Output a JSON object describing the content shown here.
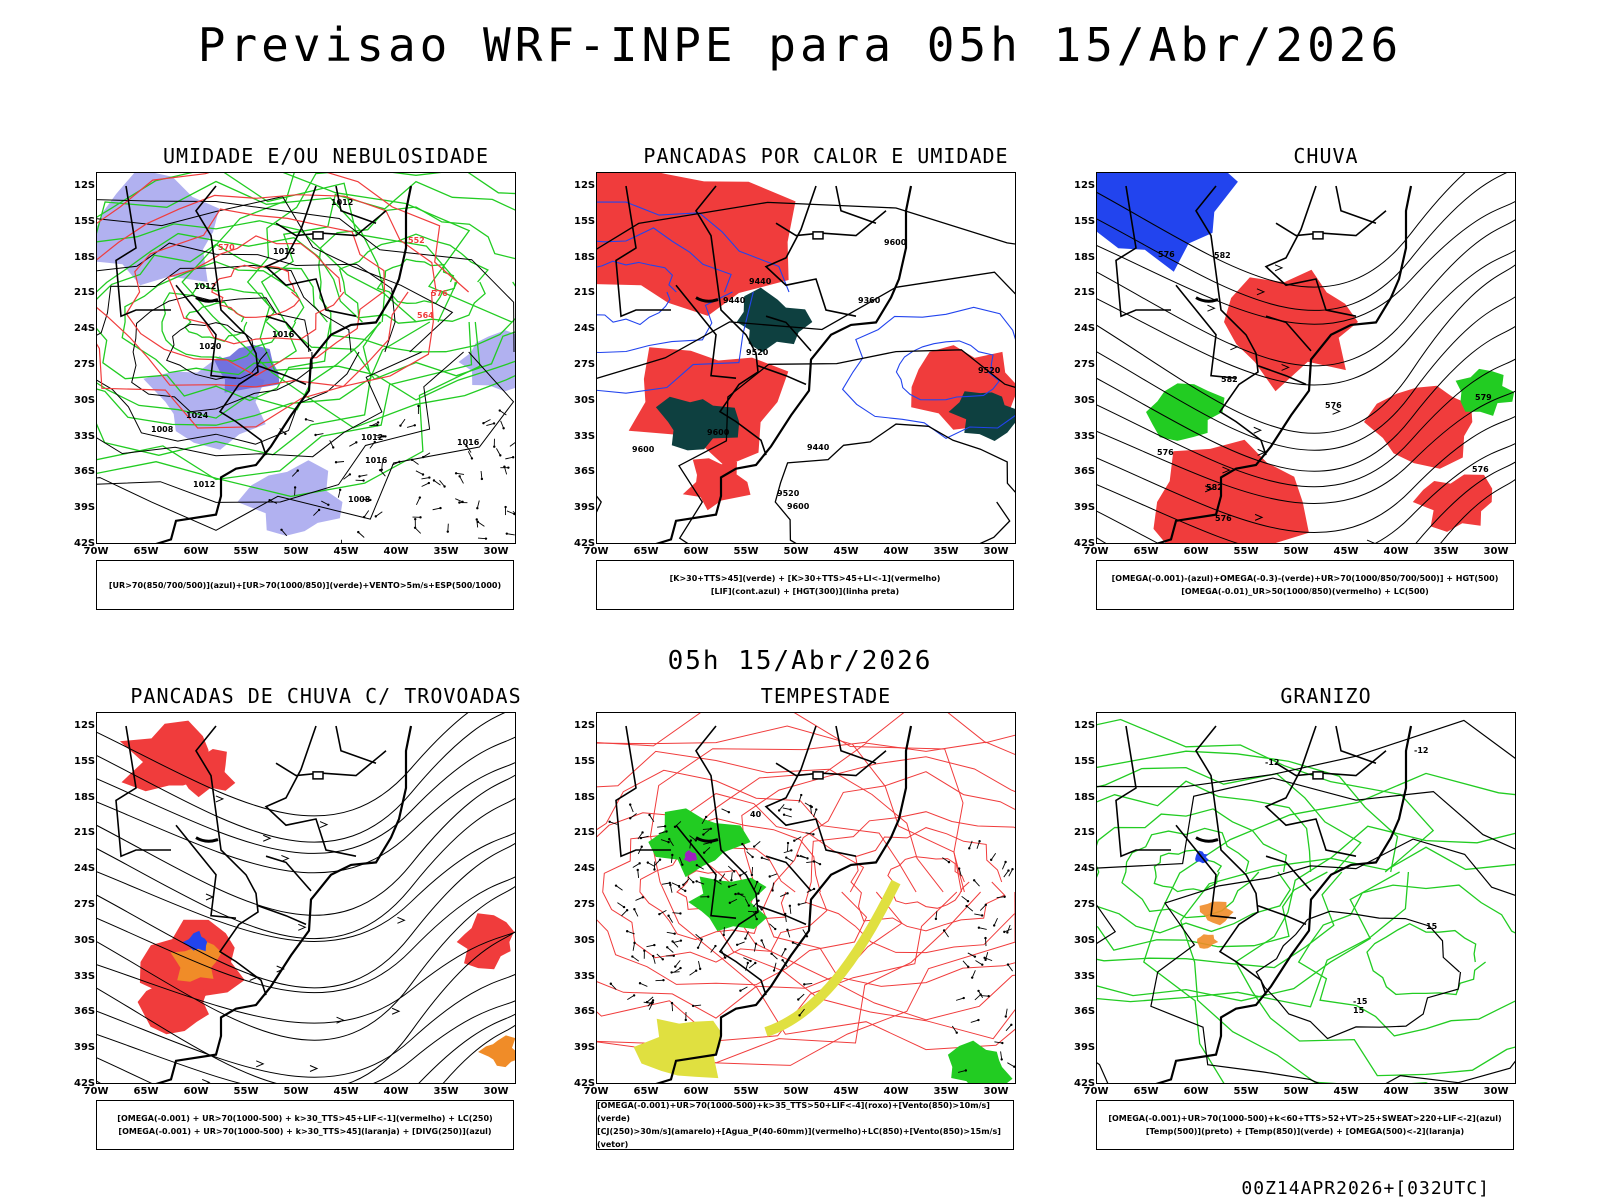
{
  "main_title": "Previsao WRF-INPE  para 05h 15/Abr/2026",
  "mid_title": "05h 15/Abr/2026",
  "footer": "00Z14APR2026+[032UTC]",
  "lat_labels": [
    "12S",
    "15S",
    "18S",
    "21S",
    "24S",
    "27S",
    "30S",
    "33S",
    "36S",
    "39S",
    "42S"
  ],
  "lon_labels": [
    "70W",
    "65W",
    "60W",
    "55W",
    "50W",
    "45W",
    "40W",
    "35W",
    "30W"
  ],
  "colors": {
    "red": "#f03c3c",
    "green": "#22cc22",
    "blue": "#2244ee",
    "lavender": "#a8a8ee",
    "teal": "#0e4040",
    "orange": "#f08c28",
    "yellow": "#e0e040",
    "purple": "#a020c0"
  },
  "panels": [
    {
      "title": "UMIDADE E/OU NEBULOSIDADE",
      "legend": [
        "[UR>70(850/700/500)](azul)+[UR>70(1000/850)](verde)+VENTO>5m/s+ESP(500/1000)"
      ],
      "labels": [
        "1012",
        "1012",
        "1008",
        "1012",
        "1008",
        "1016",
        "1016",
        "1012",
        "1020",
        "1024",
        "576",
        "570",
        "564",
        "552",
        "1012",
        "1016"
      ]
    },
    {
      "title": "PANCADAS POR CALOR E UMIDADE",
      "legend": [
        "[K>30+TTS>45](verde) + [K>30+TTS>45+LI<-1](vermelho)",
        "[LIF](cont.azul) + [HGT(300)](linha preta)"
      ],
      "labels": [
        "9600",
        "9600",
        "9600",
        "9600",
        "9520",
        "9440",
        "9520",
        "9440",
        "9360",
        "9440",
        "9520"
      ]
    },
    {
      "title": "CHUVA",
      "legend": [
        "[OMEGA(-0.001)-(azul)+OMEGA(-0.3)-(verde)+UR>70(1000/850/700/500)] + HGT(500)",
        "[OMEGA(-0.01)_UR>50(1000/850)(vermelho) + LC(500)"
      ],
      "labels": [
        "582",
        "582",
        "576",
        "576",
        "582",
        "576",
        "576",
        "579",
        "576"
      ]
    },
    {
      "title": "PANCADAS DE CHUVA C/ TROVOADAS",
      "legend": [
        "[OMEGA(-0.001) + UR>70(1000-500) + k>30_TTS>45+LIF<-1](vermelho) + LC(250)",
        "[OMEGA(-0.001) + UR>70(1000-500) + k>30_TTS>45](laranja) + [DIVG(250)](azul)"
      ],
      "labels": []
    },
    {
      "title": "TEMPESTADE",
      "legend": [
        "[OMEGA(-0.001)+UR>70(1000-500)+k>35_TTS>50+LIF<-4](roxo)+[Vento(850)>10m/s](verde)",
        "[CJ(250)>30m/s](amarelo)+[Agua_P(40-60mm)](vermelho)+LC(850)+[Vento(850)>15m/s](vetor)"
      ],
      "labels": [
        "40"
      ]
    },
    {
      "title": "GRANIZO",
      "legend": [
        "[OMEGA(-0.001)+UR>70(1000-500)+k<60+TTS>52+VT>25+SWEAT>220+LIF<-2](azul)",
        "[Temp(500)](preto) + [Temp(850)](verde) + [OMEGA(500)<-2](laranja)"
      ],
      "labels": [
        "-12",
        "-15",
        "-12",
        "15",
        "15"
      ]
    }
  ]
}
